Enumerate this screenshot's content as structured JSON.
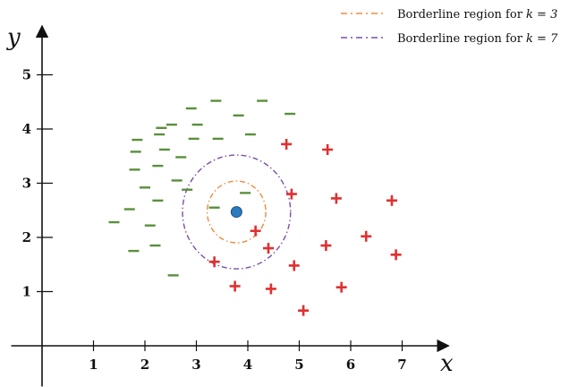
{
  "chart_data": {
    "type": "scatter",
    "title": "",
    "xlabel": "x",
    "ylabel": "y",
    "xlim": [
      -0.6,
      7.9
    ],
    "ylim": [
      -0.75,
      5.9
    ],
    "x_ticks": [
      1,
      2,
      3,
      4,
      5,
      6,
      7
    ],
    "y_ticks": [
      1,
      2,
      3,
      4,
      5
    ],
    "x_tick_labels": [
      "1",
      "2",
      "3",
      "4",
      "5",
      "6",
      "7"
    ],
    "y_tick_labels": [
      "1",
      "2",
      "3",
      "4",
      "5"
    ],
    "grid": false,
    "legend_position": "top-right",
    "colors": {
      "negative": "#5a8f3c",
      "positive": "#e03030",
      "query_fill": "#2b7bbd",
      "query_stroke": "#1a4f80",
      "circle_k3": "#f08a3c",
      "circle_k7": "#7b4fa6",
      "axis": "#111111"
    },
    "query_point": {
      "x": 3.78,
      "y": 2.47
    },
    "circles": [
      {
        "name": "Borderline region for k = 3",
        "center": [
          3.78,
          2.47
        ],
        "radius": 0.57,
        "color": "#f08a3c"
      },
      {
        "name": "Borderline region for k = 7",
        "center": [
          3.78,
          2.47
        ],
        "radius": 1.05,
        "color": "#7b4fa6"
      }
    ],
    "series": [
      {
        "name": "negative",
        "marker": "minus",
        "points": [
          [
            1.4,
            2.28
          ],
          [
            1.7,
            2.52
          ],
          [
            1.78,
            1.75
          ],
          [
            1.8,
            3.25
          ],
          [
            1.82,
            3.58
          ],
          [
            1.85,
            3.8
          ],
          [
            2.0,
            2.92
          ],
          [
            2.1,
            2.22
          ],
          [
            2.2,
            1.85
          ],
          [
            2.25,
            2.68
          ],
          [
            2.25,
            3.32
          ],
          [
            2.28,
            3.9
          ],
          [
            2.32,
            4.02
          ],
          [
            2.38,
            3.62
          ],
          [
            2.52,
            4.08
          ],
          [
            2.55,
            1.3
          ],
          [
            2.62,
            3.05
          ],
          [
            2.7,
            3.48
          ],
          [
            2.82,
            2.88
          ],
          [
            2.9,
            4.38
          ],
          [
            2.95,
            3.82
          ],
          [
            3.02,
            4.08
          ],
          [
            3.35,
            2.55
          ],
          [
            3.38,
            4.52
          ],
          [
            3.42,
            3.82
          ],
          [
            3.82,
            4.25
          ],
          [
            3.95,
            2.82
          ],
          [
            4.05,
            3.9
          ],
          [
            4.28,
            4.52
          ],
          [
            4.82,
            4.28
          ]
        ]
      },
      {
        "name": "positive",
        "marker": "plus",
        "points": [
          [
            3.35,
            1.55
          ],
          [
            3.75,
            1.1
          ],
          [
            4.15,
            2.12
          ],
          [
            4.4,
            1.8
          ],
          [
            4.45,
            1.05
          ],
          [
            4.75,
            3.72
          ],
          [
            4.85,
            2.8
          ],
          [
            4.9,
            1.48
          ],
          [
            5.08,
            0.65
          ],
          [
            5.52,
            1.85
          ],
          [
            5.55,
            3.62
          ],
          [
            5.72,
            2.72
          ],
          [
            5.82,
            1.08
          ],
          [
            6.3,
            2.02
          ],
          [
            6.8,
            2.68
          ],
          [
            6.88,
            1.68
          ]
        ]
      }
    ]
  },
  "legend": {
    "k3_label": "Borderline region for ",
    "k3_value": "k = 3",
    "k7_label": "Borderline region for ",
    "k7_value": "k = 7"
  }
}
